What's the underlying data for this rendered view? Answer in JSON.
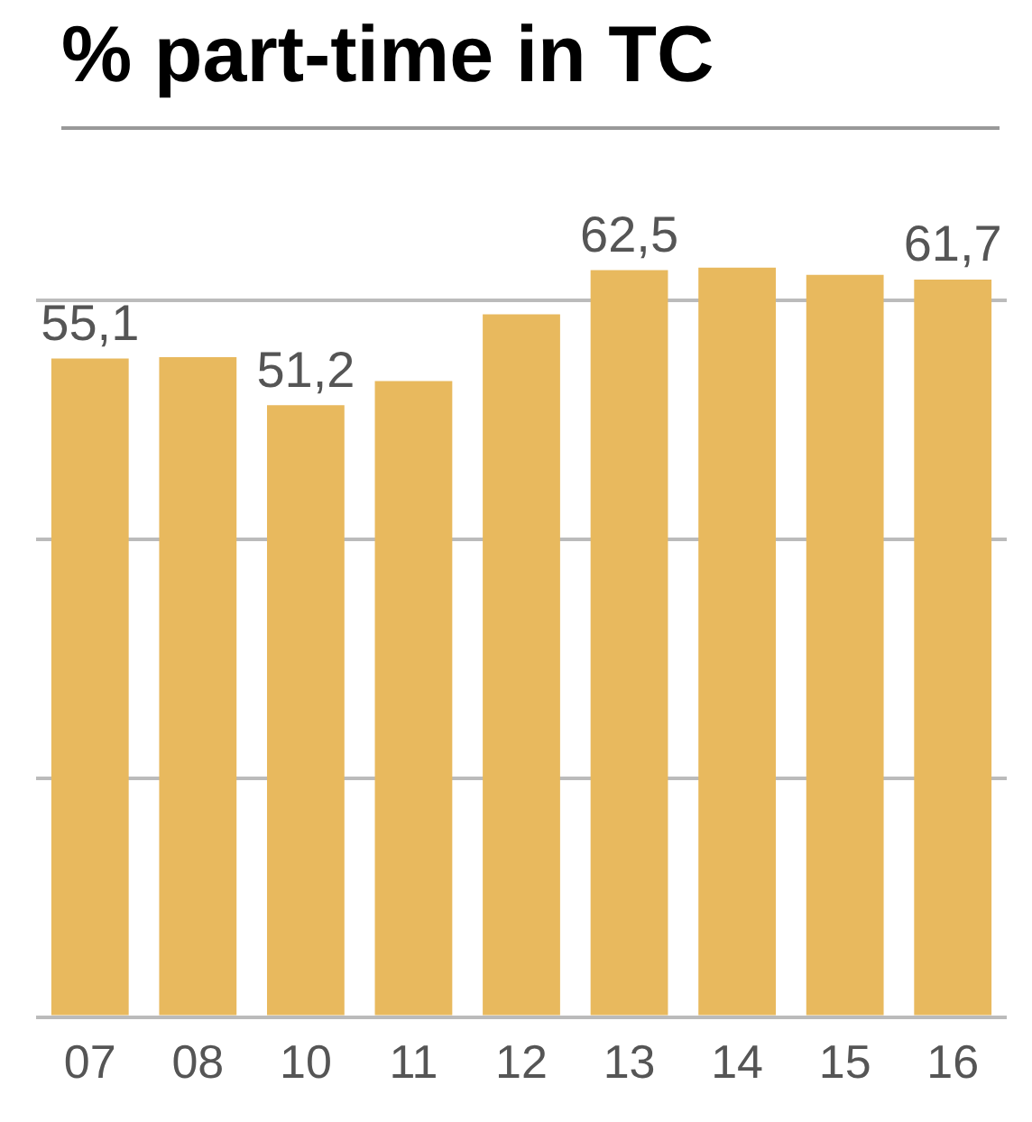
{
  "chart_data": {
    "type": "bar",
    "title": "% part-time in TC",
    "categories": [
      "07",
      "08",
      "10",
      "11",
      "12",
      "13",
      "14",
      "15",
      "16"
    ],
    "values": [
      55.1,
      55.2,
      51.2,
      53.2,
      58.8,
      62.5,
      62.7,
      62.1,
      61.7
    ],
    "value_labels": [
      "55,1",
      null,
      "51,2",
      null,
      null,
      "62,5",
      null,
      null,
      "61,7"
    ],
    "color": "#e8b95e",
    "relative": false,
    "yticks": [
      {
        "value": 0,
        "label": null
      },
      {
        "value": 20,
        "label": null
      },
      {
        "value": 40,
        "label": null
      },
      {
        "value": 60,
        "label": null
      }
    ],
    "grid": "y",
    "legend": false
  }
}
